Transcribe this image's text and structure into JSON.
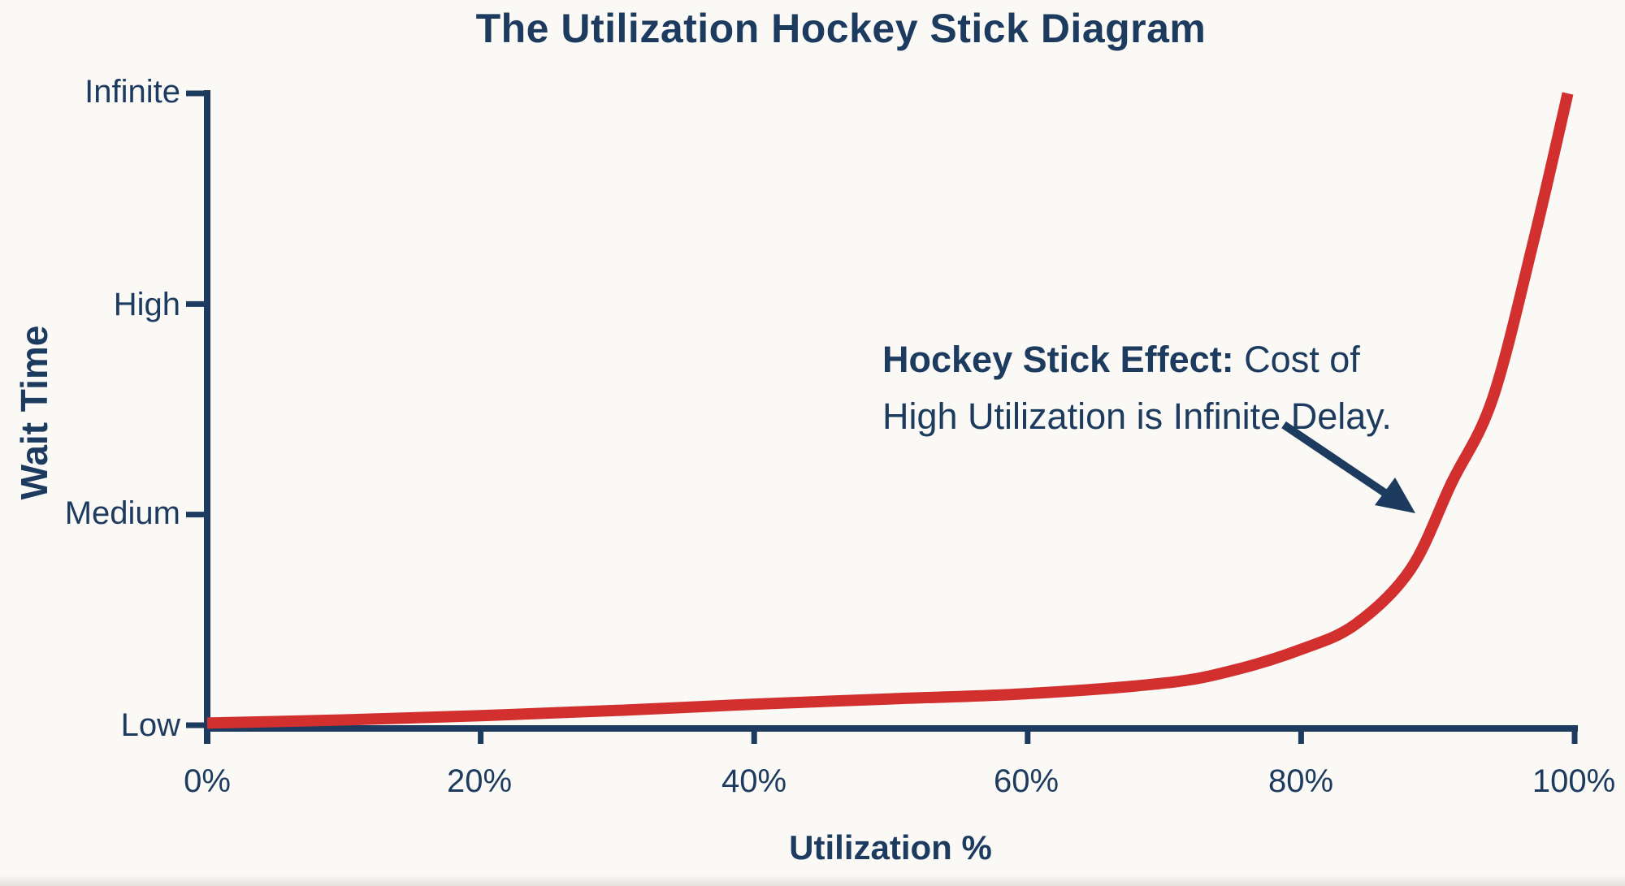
{
  "title": "The Utilization Hockey Stick Diagram",
  "y_axis": {
    "label": "Wait Time",
    "ticks": [
      "Infinite",
      "High",
      "Medium",
      "Low"
    ]
  },
  "x_axis": {
    "label": "Utilization %",
    "ticks": [
      "0%",
      "20%",
      "40%",
      "60%",
      "80%",
      "100%"
    ]
  },
  "annotation": {
    "bold": "Hockey Stick Effect:",
    "rest_line1": " Cost of",
    "line2": "High Utilization is Infinite Delay."
  },
  "colors": {
    "navy": "#1d3a5f",
    "red": "#d2302f",
    "background": "#faf9f6"
  },
  "chart_data": {
    "type": "line",
    "title": "The Utilization Hockey Stick Diagram",
    "xlabel": "Utilization %",
    "ylabel": "Wait Time",
    "x_range_pct": [
      0,
      100
    ],
    "x_tick_values": [
      0,
      20,
      40,
      60,
      80,
      100
    ],
    "x_tick_labels": [
      "0%",
      "20%",
      "40%",
      "60%",
      "80%",
      "100%"
    ],
    "y_tick_levels": [
      0,
      1,
      2,
      3
    ],
    "y_tick_labels": [
      "Low",
      "Medium",
      "High",
      "Infinite"
    ],
    "y_scale_note": "qualitative wait-time scale: 0=Low, 1=Medium, 2=High, 3=Infinite",
    "grid": false,
    "legend": "none",
    "series": [
      {
        "name": "wait-time-curve",
        "color": "#d2302f",
        "points": [
          {
            "u": 0,
            "wait": 0.01
          },
          {
            "u": 10,
            "wait": 0.025
          },
          {
            "u": 20,
            "wait": 0.045
          },
          {
            "u": 30,
            "wait": 0.07
          },
          {
            "u": 40,
            "wait": 0.1
          },
          {
            "u": 50,
            "wait": 0.125
          },
          {
            "u": 60,
            "wait": 0.15
          },
          {
            "u": 70,
            "wait": 0.2
          },
          {
            "u": 75,
            "wait": 0.26
          },
          {
            "u": 80,
            "wait": 0.36
          },
          {
            "u": 84,
            "wait": 0.48
          },
          {
            "u": 88,
            "wait": 0.74
          },
          {
            "u": 91,
            "wait": 1.15
          },
          {
            "u": 94,
            "wait": 1.55
          },
          {
            "u": 97,
            "wait": 2.3
          },
          {
            "u": 99.5,
            "wait": 3.0
          }
        ]
      }
    ],
    "annotation_text": "Hockey Stick Effect: Cost of High Utilization is Infinite Delay.",
    "annotation_arrow": "points from annotation text toward the steep rise of the curve near ~90% utilization"
  }
}
